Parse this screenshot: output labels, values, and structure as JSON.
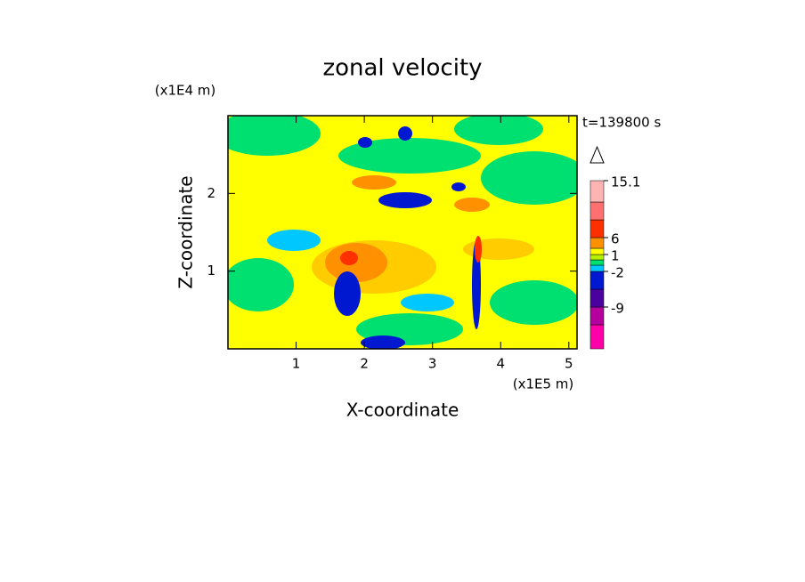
{
  "chart_data": {
    "type": "contour",
    "title": "zonal velocity",
    "x_label": "X-coordinate",
    "y_label": "Z-coordinate",
    "x_unit": "(x1E5 m)",
    "y_unit": "(x1E4 m)",
    "annotation": "t=139800 s",
    "xlim": [
      0,
      5.12
    ],
    "xticks": [
      1,
      2,
      3,
      4,
      5
    ],
    "ylim": [
      0,
      3.0
    ],
    "yticks": [
      1,
      2
    ],
    "colorbar": {
      "levels": [
        -15,
        -12,
        -9,
        -6,
        -2,
        -1,
        0,
        1,
        2,
        6,
        9,
        12,
        15.1
      ],
      "colors": [
        "#ff00a8",
        "#b4009c",
        "#4b00a0",
        "#0018d0",
        "#00c8ff",
        "#00e070",
        "#b4f000",
        "#ffff00",
        "#ff9000",
        "#ff3000",
        "#ff7070",
        "#ffb4b4"
      ],
      "ticks": [
        -9,
        -2,
        1,
        6,
        15.1
      ]
    }
  }
}
